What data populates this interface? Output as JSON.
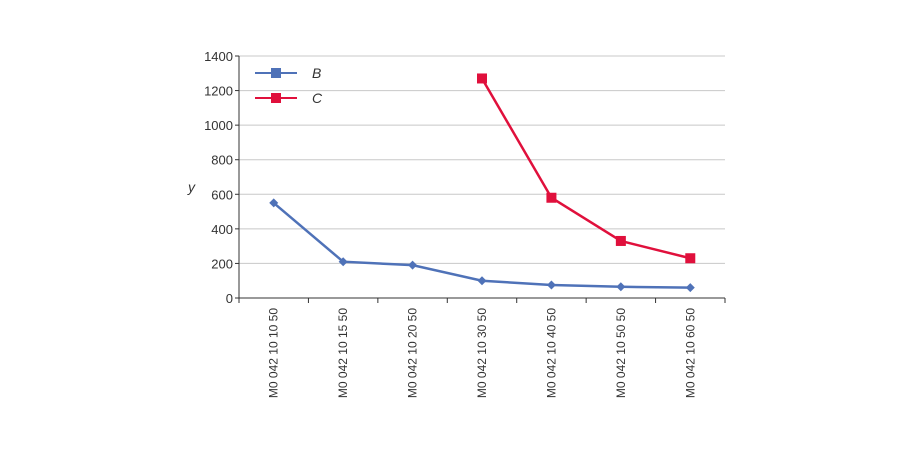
{
  "chart_data": {
    "type": "line",
    "title": "",
    "xlabel": "",
    "ylabel": "y",
    "ylim": [
      0,
      1400
    ],
    "yticks": [
      0,
      200,
      400,
      600,
      800,
      1000,
      1200,
      1400
    ],
    "grid": true,
    "legend_position": "top-left",
    "categories": [
      "M0 042 10 10 50",
      "M0 042 10 15 50",
      "M0 042 10 20 50",
      "M0 042 10 30 50",
      "M0 042 10 40 50",
      "M0 042 10 50 50",
      "M0 042 10 60 50"
    ],
    "series": [
      {
        "name": "B",
        "color": "#4f72b8",
        "marker": "diamond",
        "values": [
          550,
          210,
          190,
          100,
          75,
          65,
          60
        ]
      },
      {
        "name": "C",
        "color": "#e0103c",
        "marker": "square",
        "values": [
          null,
          null,
          null,
          1270,
          580,
          330,
          230
        ]
      }
    ]
  }
}
